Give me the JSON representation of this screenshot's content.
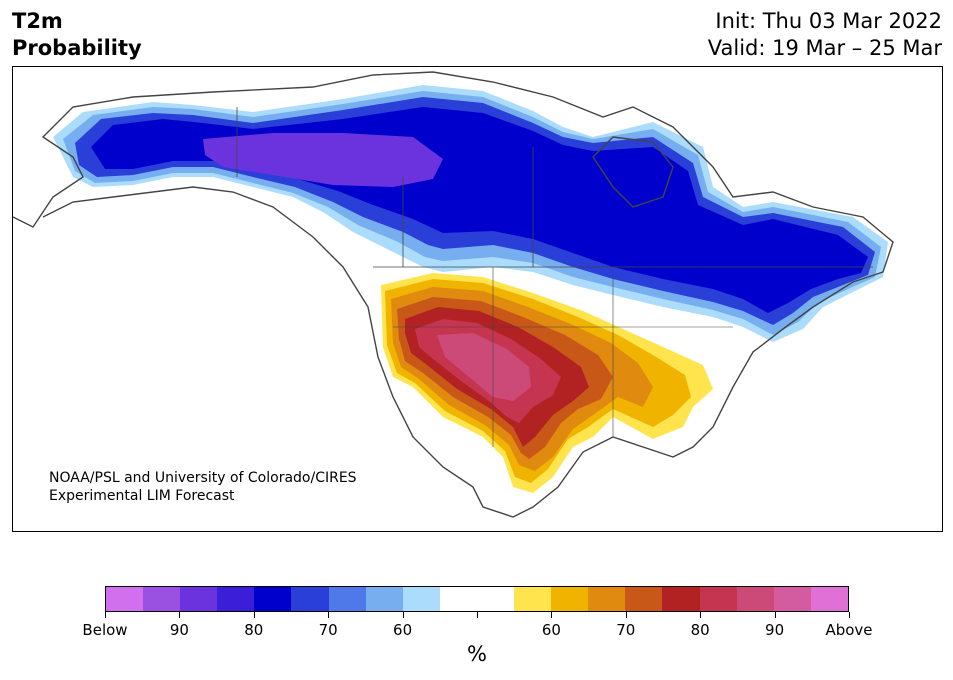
{
  "header": {
    "variable": "T2m",
    "subtitle": "Probability",
    "init": "Init: Thu 03 Mar 2022",
    "valid": "Valid: 19 Mar – 25 Mar"
  },
  "map": {
    "credit_line1": "NOAA/PSL and University of Colorado/CIRES",
    "credit_line2": "Experimental LIM Forecast",
    "regions": [
      {
        "name": "alaska-canada-below-band",
        "category": "below-80",
        "color": "#0000cc"
      },
      {
        "name": "yukon-nw-core",
        "category": "below-90",
        "color": "#6b33dd"
      },
      {
        "name": "hudson-quebec-below",
        "category": "below-80",
        "color": "#0000cc"
      },
      {
        "name": "northern-plains-gradient",
        "category": "below-60-70",
        "color": "#4477ee"
      },
      {
        "name": "southwest-above-core",
        "category": "above-90",
        "color": "#d05088"
      },
      {
        "name": "southern-plains-above",
        "category": "above-80",
        "color": "#b22222"
      },
      {
        "name": "southeast-above-edge",
        "category": "above-60",
        "color": "#f0b400"
      }
    ]
  },
  "colorbar": {
    "colors": [
      "#d070ee",
      "#9a50e0",
      "#6b33dd",
      "#3a1ed8",
      "#0000cc",
      "#2a3fd8",
      "#4f78e8",
      "#77aef0",
      "#acdcfb",
      "#ffffff",
      "#ffffff",
      "#ffe44d",
      "#f0b400",
      "#e08a10",
      "#c85818",
      "#b22222",
      "#c63550",
      "#cc4a78",
      "#d25c9f",
      "#e070d6"
    ],
    "labels": [
      "Below",
      "90",
      "80",
      "70",
      "60",
      "",
      "60",
      "70",
      "80",
      "90",
      "Above"
    ],
    "unit": "%"
  }
}
